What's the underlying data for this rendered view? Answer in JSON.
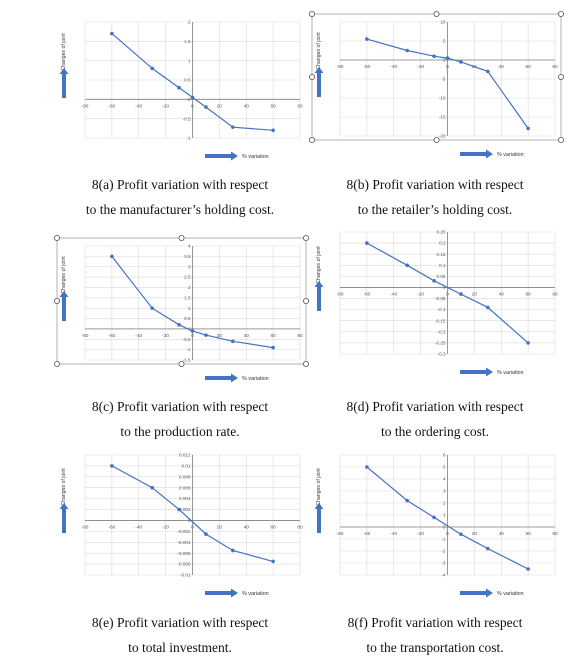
{
  "figure": {
    "colors": {
      "line": "#4472c4",
      "grid": "#d9d9d9",
      "axis": "#808080",
      "arrow": "#4472c4",
      "handle": "#555555"
    },
    "icons": {
      "y_arrow": "up-arrow-icon",
      "x_arrow": "right-arrow-icon"
    }
  },
  "chart_data": [
    {
      "id": "a",
      "type": "line",
      "ylabel": "Changes of joint",
      "xlabel": "% variation",
      "x": [
        -60,
        -30,
        -10,
        0,
        10,
        30,
        60
      ],
      "series": [
        {
          "values": [
            1.7,
            0.8,
            0.3,
            0.05,
            -0.2,
            -0.72,
            -0.8
          ]
        }
      ],
      "xlim": [
        -80,
        80
      ],
      "xticks": [
        "-80",
        "-60",
        "-40",
        "-20",
        "0",
        "20",
        "40",
        "60",
        "80"
      ],
      "ylim": [
        -1,
        2
      ],
      "yticks": [
        "2",
        "1.5",
        "1",
        "0.5",
        "0",
        "-0.5",
        "-1"
      ],
      "caption": [
        "8(a) Profit variation with respect",
        "to the manufacturer’s holding cost."
      ],
      "selected": false
    },
    {
      "id": "b",
      "type": "line",
      "ylabel": "Changes of joint",
      "xlabel": "% variation",
      "x": [
        -60,
        -30,
        -10,
        0,
        10,
        30,
        60
      ],
      "series": [
        {
          "values": [
            5.5,
            2.5,
            1.0,
            0.5,
            -0.5,
            -3.0,
            -18.0
          ]
        }
      ],
      "xlim": [
        -80,
        80
      ],
      "xticks": [
        "-80",
        "-60",
        "-40",
        "-20",
        "0",
        "20",
        "40",
        "60",
        "80"
      ],
      "ylim": [
        -20,
        10
      ],
      "yticks": [
        "10",
        "5",
        "0",
        "-5",
        "-10",
        "-15",
        "-20"
      ],
      "caption": [
        "8(b) Profit variation with respect",
        "to the retailer’s holding cost."
      ],
      "selected": true
    },
    {
      "id": "c",
      "type": "line",
      "ylabel": "Changes of joint",
      "xlabel": "% variation",
      "x": [
        -60,
        -30,
        -10,
        0,
        10,
        30,
        60
      ],
      "series": [
        {
          "values": [
            3.5,
            1.0,
            0.2,
            -0.1,
            -0.3,
            -0.6,
            -0.9
          ]
        }
      ],
      "xlim": [
        -80,
        80
      ],
      "xticks": [
        "-80",
        "-60",
        "-40",
        "-20",
        "0",
        "20",
        "40",
        "60",
        "80"
      ],
      "ylim": [
        -1.5,
        4
      ],
      "yticks": [
        "4",
        "3.5",
        "3",
        "2.5",
        "2",
        "1.5",
        "1",
        "0.5",
        "0",
        "-0.5",
        "-1",
        "-1.5"
      ],
      "caption": [
        "8(c) Profit variation with respect",
        "to the production rate."
      ],
      "selected": true
    },
    {
      "id": "d",
      "type": "line",
      "ylabel": "Changes of joint",
      "xlabel": "% variation",
      "x": [
        -60,
        -30,
        -10,
        10,
        30,
        60
      ],
      "series": [
        {
          "values": [
            0.2,
            0.1,
            0.03,
            -0.03,
            -0.09,
            -0.25
          ]
        }
      ],
      "xlim": [
        -80,
        80
      ],
      "xticks": [
        "-80",
        "-60",
        "-40",
        "-20",
        "0",
        "20",
        "40",
        "60",
        "80"
      ],
      "ylim": [
        -0.3,
        0.25
      ],
      "yticks": [
        "0.25",
        "0.2",
        "0.15",
        "0.1",
        "0.05",
        "0",
        "-0.05",
        "-0.1",
        "-0.15",
        "-0.2",
        "-0.25",
        "-0.3"
      ],
      "caption": [
        "8(d) Profit variation with respect",
        "to the ordering cost."
      ],
      "selected": false
    },
    {
      "id": "e",
      "type": "line",
      "ylabel": "Changes of joint",
      "xlabel": "% variation",
      "x": [
        -60,
        -30,
        -10,
        10,
        30,
        60
      ],
      "series": [
        {
          "values": [
            0.01,
            0.006,
            0.002,
            -0.0025,
            -0.0055,
            -0.0075
          ]
        }
      ],
      "xlim": [
        -80,
        80
      ],
      "xticks": [
        "-80",
        "-60",
        "-40",
        "-20",
        "0",
        "20",
        "40",
        "60",
        "80"
      ],
      "ylim": [
        -0.01,
        0.012
      ],
      "yticks": [
        "0.012",
        "0.01",
        "0.008",
        "0.006",
        "0.004",
        "0.002",
        "0",
        "-0.002",
        "-0.004",
        "-0.006",
        "-0.008",
        "-0.01"
      ],
      "caption": [
        "8(e) Profit variation with respect",
        "to total investment."
      ],
      "selected": false
    },
    {
      "id": "f",
      "type": "line",
      "ylabel": "Changes of joint",
      "xlabel": "% variation",
      "x": [
        -60,
        -30,
        -10,
        10,
        30,
        60
      ],
      "series": [
        {
          "values": [
            5.0,
            2.2,
            0.8,
            -0.6,
            -1.8,
            -3.5
          ]
        }
      ],
      "xlim": [
        -80,
        80
      ],
      "xticks": [
        "-80",
        "-60",
        "-40",
        "-20",
        "0",
        "20",
        "40",
        "60",
        "80"
      ],
      "ylim": [
        -4,
        6
      ],
      "yticks": [
        "6",
        "5",
        "4",
        "3",
        "2",
        "1",
        "0",
        "-1",
        "-2",
        "-3",
        "-4"
      ],
      "caption": [
        "8(f) Profit variation with respect",
        "to the transportation cost."
      ],
      "selected": false
    }
  ]
}
